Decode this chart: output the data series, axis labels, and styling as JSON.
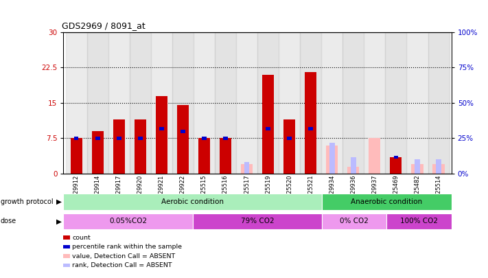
{
  "title": "GDS2969 / 8091_at",
  "samples": [
    "GSM29912",
    "GSM29914",
    "GSM29917",
    "GSM29920",
    "GSM29921",
    "GSM29922",
    "GSM225515",
    "GSM225516",
    "GSM225517",
    "GSM225519",
    "GSM225520",
    "GSM225521",
    "GSM29934",
    "GSM29936",
    "GSM29937",
    "GSM225469",
    "GSM225482",
    "GSM225514"
  ],
  "count_values": [
    7.5,
    9.0,
    11.5,
    11.5,
    16.5,
    14.5,
    7.5,
    7.5,
    0.0,
    21.0,
    11.5,
    21.5,
    0.0,
    0.0,
    0.0,
    3.5,
    0.0,
    0.0
  ],
  "rank_values": [
    7.5,
    7.5,
    7.5,
    7.5,
    9.5,
    9.0,
    7.5,
    7.5,
    0.0,
    9.5,
    7.5,
    9.5,
    0.0,
    0.0,
    0.0,
    3.5,
    0.0,
    0.0
  ],
  "absent_count_values": [
    0.0,
    0.0,
    0.0,
    0.0,
    0.0,
    0.0,
    0.0,
    0.0,
    2.0,
    0.0,
    0.0,
    0.0,
    6.0,
    1.5,
    7.5,
    0.0,
    2.0,
    2.0
  ],
  "absent_rank_values": [
    0.0,
    0.0,
    0.0,
    0.0,
    0.0,
    0.0,
    0.0,
    0.0,
    2.5,
    0.0,
    0.0,
    0.0,
    6.5,
    3.5,
    0.0,
    0.0,
    3.0,
    3.0
  ],
  "ylim_left": [
    0,
    30
  ],
  "ylim_right": [
    0,
    100
  ],
  "yticks_left": [
    0,
    7.5,
    15,
    22.5,
    30
  ],
  "yticks_right": [
    0,
    25,
    50,
    75,
    100
  ],
  "color_count": "#cc0000",
  "color_rank": "#0000cc",
  "color_absent_count": "#ffbbbb",
  "color_absent_rank": "#bbbbff",
  "color_aerobic": "#aaeebb",
  "color_anaerobic": "#44cc66",
  "color_dose_light": "#ee99ee",
  "color_dose_dark": "#cc44cc",
  "growth_protocol_label": "growth protocol",
  "dose_label": "dose",
  "groups": [
    {
      "label": "Aerobic condition",
      "start": 0,
      "end": 11,
      "color": "#aaeebb"
    },
    {
      "label": "Anaerobic condition",
      "start": 12,
      "end": 17,
      "color": "#44cc66"
    }
  ],
  "doses": [
    {
      "label": "0.05%CO2",
      "start": 0,
      "end": 5,
      "color": "#ee99ee"
    },
    {
      "label": "79% CO2",
      "start": 6,
      "end": 11,
      "color": "#cc44cc"
    },
    {
      "label": "0% CO2",
      "start": 12,
      "end": 14,
      "color": "#ee99ee"
    },
    {
      "label": "100% CO2",
      "start": 15,
      "end": 17,
      "color": "#cc44cc"
    }
  ],
  "bar_width": 0.55,
  "legend_items": [
    {
      "label": "count",
      "color": "#cc0000"
    },
    {
      "label": "percentile rank within the sample",
      "color": "#0000cc"
    },
    {
      "label": "value, Detection Call = ABSENT",
      "color": "#ffbbbb"
    },
    {
      "label": "rank, Detection Call = ABSENT",
      "color": "#bbbbff"
    }
  ]
}
